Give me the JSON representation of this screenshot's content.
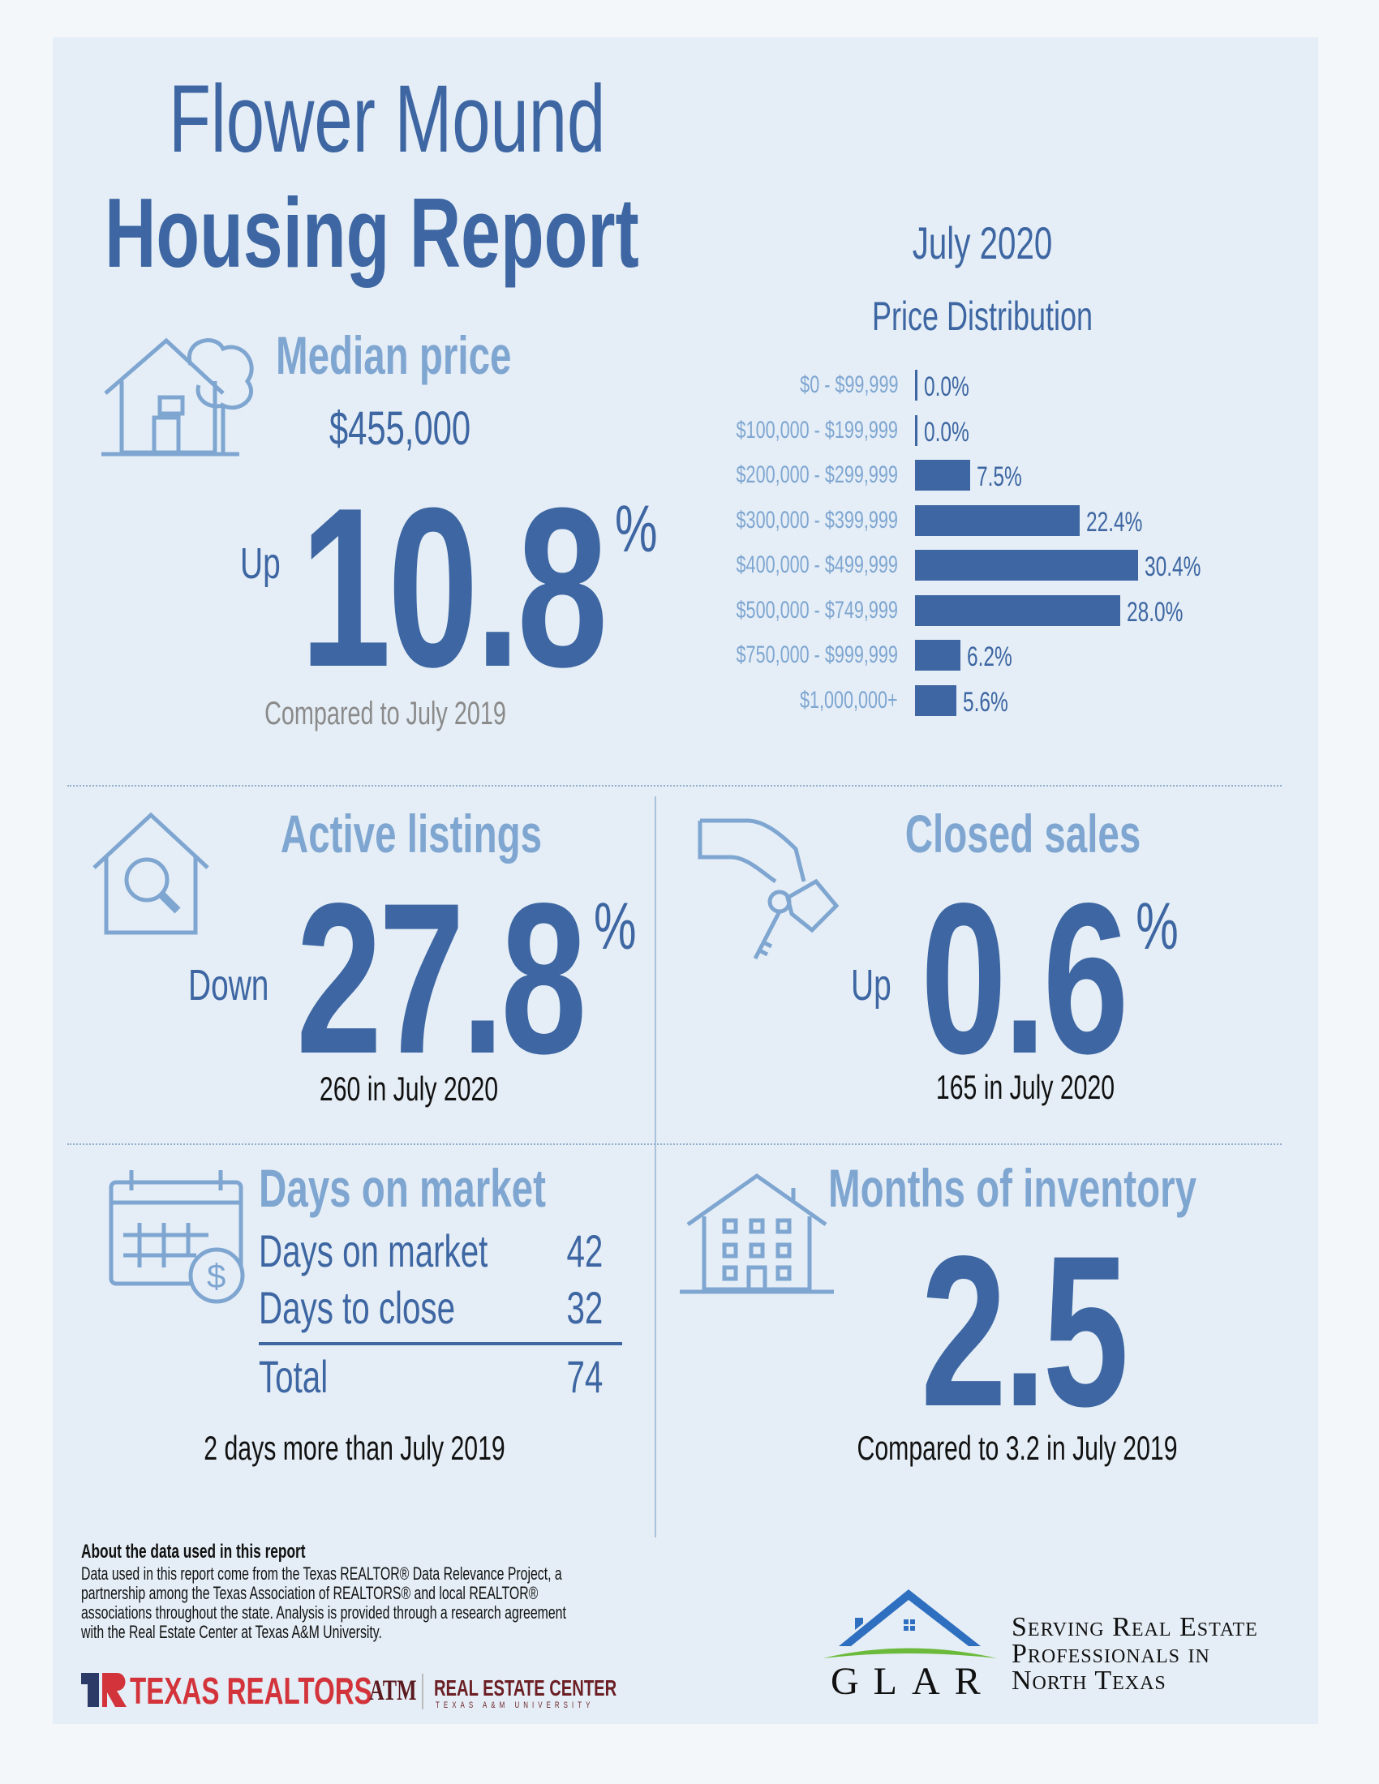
{
  "title": {
    "line1": "Flower Mound",
    "line2": "Housing Report"
  },
  "period": "July 2020",
  "median": {
    "heading": "Median price",
    "price": "$455,000",
    "direction": "Up",
    "change": "10.8",
    "unit": "%",
    "note": "Compared to July 2019"
  },
  "chart_data": {
    "type": "bar",
    "orientation": "horizontal",
    "title": "Price Distribution",
    "categories": [
      "$0 - $99,999",
      "$100,000 - $199,999",
      "$200,000 - $299,999",
      "$300,000 - $399,999",
      "$400,000 - $499,999",
      "$500,000 - $749,999",
      "$750,000 - $999,999",
      "$1,000,000+"
    ],
    "values": [
      0.0,
      0.0,
      7.5,
      22.4,
      30.4,
      28.0,
      6.2,
      5.6
    ],
    "labels": [
      "0.0%",
      "0.0%",
      "7.5%",
      "22.4%",
      "30.4%",
      "28.0%",
      "6.2%",
      "5.6%"
    ],
    "color": "#3d66a2"
  },
  "active": {
    "heading": "Active listings",
    "direction": "Down",
    "change": "27.8",
    "unit": "%",
    "note": "260 in July 2020"
  },
  "closed": {
    "heading": "Closed sales",
    "direction": "Up",
    "change": "0.6",
    "unit": "%",
    "note": "165 in July 2020"
  },
  "dom": {
    "heading": "Days on market",
    "rows": [
      {
        "label": "Days on market",
        "value": "42"
      },
      {
        "label": "Days to close",
        "value": "32"
      }
    ],
    "total": {
      "label": "Total",
      "value": "74"
    },
    "note": "2 days more than July 2019"
  },
  "inventory": {
    "heading": "Months of inventory",
    "value": "2.5",
    "note": "Compared to 3.2 in July 2019"
  },
  "about": {
    "heading": "About the data used in this report",
    "lines": [
      "Data used in this report come from the Texas REALTOR® Data Relevance Project, a",
      "partnership among the Texas Association of REALTORS® and local REALTOR®",
      "associations throughout the state. Analysis is provided through a research agreement",
      "with the Real Estate Center at Texas A&M University."
    ]
  },
  "logos": {
    "texas_realtors": "TEXAS REALTORS",
    "atm": "ATM",
    "rec": "REAL ESTATE CENTER",
    "rec_sub": "TEXAS A&M UNIVERSITY",
    "glar": "GLAR",
    "glar_tagline": [
      "Serving Real Estate",
      "Professionals in",
      "North Texas"
    ]
  },
  "colors": {
    "dark_blue": "#3d66a2",
    "light_blue": "#7fa6d1",
    "background": "#e5eef6"
  }
}
